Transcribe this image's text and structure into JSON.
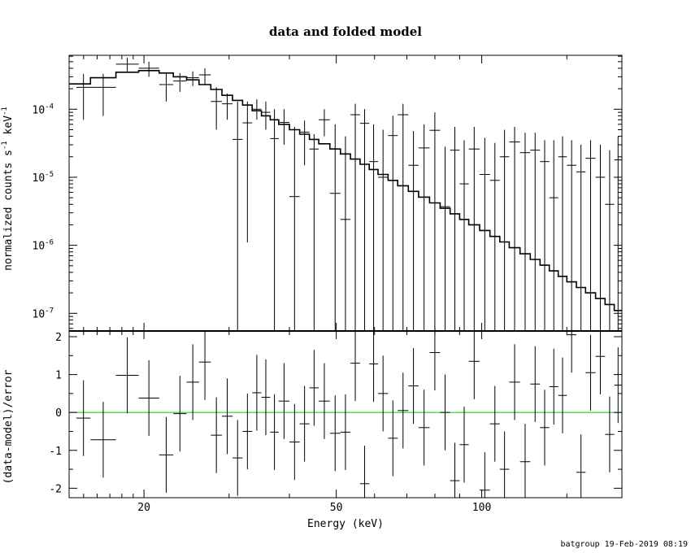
{
  "chart_data": {
    "type": "scatter",
    "title": "data and folded model",
    "footer": "batgroup 19-Feb-2019 08:19",
    "colors": {
      "axes": "#000000",
      "data": "#000000",
      "model": "#000000",
      "zero_line": "#00cc00",
      "background": "#ffffff"
    },
    "xlabel": "Energy (keV)",
    "x_scale": "log",
    "xlim": [
      14,
      195
    ],
    "x_ticks": [
      {
        "value": 20,
        "label": "20"
      },
      {
        "value": 50,
        "label": "50"
      },
      {
        "value": 100,
        "label": "100"
      }
    ],
    "panels": [
      {
        "id": "spectrum",
        "ylabel": "normalized counts s",
        "ylabel_units": "-1",
        "ylabel_tail": " keV",
        "ylabel_units2": "-1",
        "y_scale": "log",
        "ylim": [
          5.5e-08,
          0.00062
        ],
        "y_ticks": [
          {
            "value": 0.0001,
            "label": "10",
            "exp": "-4"
          },
          {
            "value": 1e-05,
            "label": "10",
            "exp": "-5"
          },
          {
            "value": 1e-06,
            "label": "10",
            "exp": "-6"
          },
          {
            "value": 1e-07,
            "label": "10",
            "exp": "-7"
          }
        ],
        "series": [
          {
            "kind": "data",
            "points": [
              [
                14.5,
                15.5,
                0.00021,
                7e-05,
                0.00033
              ],
              [
                15.5,
                17.5,
                0.00021,
                8e-05,
                0.00033
              ],
              [
                17.5,
                19.5,
                0.00046,
                0.00036,
                0.00057
              ],
              [
                19.5,
                21.5,
                0.0004,
                0.0003,
                0.0005
              ],
              [
                21.5,
                23.0,
                0.00023,
                0.00013,
                0.00034
              ],
              [
                23.0,
                24.5,
                0.00026,
                0.00018,
                0.00034
              ],
              [
                24.5,
                26.0,
                0.00029,
                0.00022,
                0.00036
              ],
              [
                26.0,
                27.5,
                0.00032,
                0.00023,
                0.0004
              ],
              [
                27.5,
                29.0,
                0.00013,
                5e-05,
                0.00021
              ],
              [
                29.0,
                30.5,
                0.00012,
                7e-05,
                0.00017
              ],
              [
                30.5,
                32.0,
                3.6e-05,
                5.5e-08,
                0.00013
              ],
              [
                32.0,
                33.5,
                6.3e-05,
                1.1e-06,
                0.00013
              ],
              [
                33.5,
                35.0,
                0.0001,
                7e-05,
                0.00014
              ],
              [
                35.0,
                36.5,
                9e-05,
                5e-05,
                0.00013
              ],
              [
                36.5,
                38.0,
                3.7e-05,
                5.5e-08,
                0.0001
              ],
              [
                38.0,
                40.0,
                6.4e-05,
                3e-05,
                0.0001
              ],
              [
                40.0,
                42.0,
                5.2e-06,
                5.5e-08,
                5.5e-05
              ],
              [
                42.0,
                44.0,
                4.6e-05,
                1.5e-05,
                6.8e-05
              ],
              [
                44.0,
                46.0,
                2.6e-05,
                5.5e-08,
                4.3e-05
              ],
              [
                46.0,
                48.5,
                7e-05,
                4e-05,
                0.0001
              ],
              [
                48.5,
                51.0,
                5.8e-06,
                5.5e-08,
                6e-05
              ],
              [
                51.0,
                53.5,
                2.4e-06,
                5.5e-08,
                4e-05
              ],
              [
                53.5,
                56.0,
                8.3e-05,
                5.5e-08,
                0.00012
              ],
              [
                56.0,
                58.5,
                6.2e-05,
                5.5e-08,
                0.0001
              ],
              [
                58.5,
                61.0,
                1.7e-05,
                5.5e-08,
                6e-05
              ],
              [
                61.0,
                64.0,
                1e-05,
                5.5e-08,
                5e-05
              ],
              [
                64.0,
                67.0,
                4.1e-05,
                5.5e-08,
                8e-05
              ],
              [
                67.0,
                70.5,
                8.3e-05,
                5.5e-08,
                0.00012
              ],
              [
                70.5,
                74.0,
                1.5e-05,
                5.5e-08,
                4.8e-05
              ],
              [
                74.0,
                78.0,
                2.7e-05,
                5.5e-08,
                6e-05
              ],
              [
                78.0,
                82.0,
                4.9e-05,
                5.5e-08,
                9e-05
              ],
              [
                82.0,
                86.0,
                3.7e-06,
                5.5e-08,
                2.8e-05
              ],
              [
                86.0,
                90.0,
                2.5e-05,
                5.5e-08,
                5.5e-05
              ],
              [
                90.0,
                94.0,
                8e-06,
                5.5e-08,
                3.5e-05
              ],
              [
                94.0,
                99.0,
                2.6e-05,
                5.5e-08,
                5.5e-05
              ],
              [
                99.0,
                104.0,
                1.1e-05,
                5.5e-08,
                3.8e-05
              ],
              [
                104.0,
                109.0,
                9e-06,
                5.5e-08,
                3.2e-05
              ],
              [
                109.0,
                114.0,
                2e-05,
                5.5e-08,
                5e-05
              ],
              [
                114.0,
                120.0,
                3.3e-05,
                5.5e-08,
                5.5e-05
              ],
              [
                120.0,
                126.0,
                2.3e-05,
                5.5e-08,
                4.5e-05
              ],
              [
                126.0,
                132.0,
                2.5e-05,
                5.5e-08,
                4.5e-05
              ],
              [
                132.0,
                138.0,
                1.7e-05,
                5.5e-08,
                3.5e-05
              ],
              [
                138.0,
                144.0,
                5e-06,
                5.5e-08,
                3.5e-05
              ],
              [
                144.0,
                150.0,
                2e-05,
                5.5e-08,
                4e-05
              ],
              [
                150.0,
                157.0,
                1.5e-05,
                5.5e-08,
                3.5e-05
              ],
              [
                157.0,
                164.0,
                1.2e-05,
                5.5e-08,
                3e-05
              ],
              [
                164.0,
                172.0,
                1.9e-05,
                5.5e-08,
                3.5e-05
              ],
              [
                172.0,
                180.0,
                1e-05,
                5.5e-08,
                3e-05
              ],
              [
                180.0,
                188.0,
                4e-06,
                5.5e-08,
                2.5e-05
              ],
              [
                188.0,
                195.0,
                1.8e-05,
                5.5e-08,
                4e-05
              ]
            ]
          },
          {
            "kind": "model",
            "steps": [
              [
                14.0,
                0.000235
              ],
              [
                15.5,
                0.00029
              ],
              [
                17.5,
                0.00035
              ],
              [
                19.5,
                0.00037
              ],
              [
                21.5,
                0.00034
              ],
              [
                23.0,
                0.0003
              ],
              [
                24.5,
                0.00027
              ],
              [
                26.0,
                0.00023
              ],
              [
                27.5,
                0.000195
              ],
              [
                29.0,
                0.00016
              ],
              [
                30.5,
                0.000135
              ],
              [
                32.0,
                0.000115
              ],
              [
                33.5,
                9.5e-05
              ],
              [
                35.0,
                8e-05
              ],
              [
                36.5,
                7e-05
              ],
              [
                38.0,
                6e-05
              ],
              [
                40.0,
                5e-05
              ],
              [
                42.0,
                4.3e-05
              ],
              [
                44.0,
                3.6e-05
              ],
              [
                46.0,
                3.1e-05
              ],
              [
                48.5,
                2.6e-05
              ],
              [
                51.0,
                2.2e-05
              ],
              [
                53.5,
                1.85e-05
              ],
              [
                56.0,
                1.55e-05
              ],
              [
                58.5,
                1.3e-05
              ],
              [
                61.0,
                1.1e-05
              ],
              [
                64.0,
                9e-06
              ],
              [
                67.0,
                7.5e-06
              ],
              [
                70.5,
                6.2e-06
              ],
              [
                74.0,
                5.1e-06
              ],
              [
                78.0,
                4.2e-06
              ],
              [
                82.0,
                3.5e-06
              ],
              [
                86.0,
                2.9e-06
              ],
              [
                90.0,
                2.4e-06
              ],
              [
                94.0,
                2e-06
              ],
              [
                99.0,
                1.65e-06
              ],
              [
                104.0,
                1.35e-06
              ],
              [
                109.0,
                1.12e-06
              ],
              [
                114.0,
                9.2e-07
              ],
              [
                120.0,
                7.5e-07
              ],
              [
                126.0,
                6.2e-07
              ],
              [
                132.0,
                5.1e-07
              ],
              [
                138.0,
                4.2e-07
              ],
              [
                144.0,
                3.5e-07
              ],
              [
                150.0,
                2.9e-07
              ],
              [
                157.0,
                2.4e-07
              ],
              [
                164.0,
                2e-07
              ],
              [
                172.0,
                1.65e-07
              ],
              [
                180.0,
                1.35e-07
              ],
              [
                188.0,
                1.1e-07
              ],
              [
                195.0,
                1.1e-07
              ]
            ]
          }
        ]
      },
      {
        "id": "residuals",
        "ylabel": "(data-model)/error",
        "y_scale": "linear",
        "ylim": [
          -2.25,
          2.15
        ],
        "zero_line": 0,
        "y_ticks": [
          {
            "value": 2,
            "label": "2"
          },
          {
            "value": 1,
            "label": "1"
          },
          {
            "value": 0,
            "label": "0"
          },
          {
            "value": -1,
            "label": "-1"
          },
          {
            "value": -2,
            "label": "-2"
          }
        ],
        "series": [
          {
            "kind": "residuals",
            "points": [
              [
                14.5,
                15.5,
                -0.15
              ],
              [
                15.5,
                17.5,
                -0.72
              ],
              [
                17.5,
                19.5,
                0.98
              ],
              [
                19.5,
                21.5,
                0.38
              ],
              [
                21.5,
                23.0,
                -1.12
              ],
              [
                23.0,
                24.5,
                -0.03
              ],
              [
                24.5,
                26.0,
                0.8
              ],
              [
                26.0,
                27.5,
                1.33
              ],
              [
                27.5,
                29.0,
                -0.6
              ],
              [
                29.0,
                30.5,
                -0.1
              ],
              [
                30.5,
                32.0,
                -1.2
              ],
              [
                32.0,
                33.5,
                -0.5
              ],
              [
                33.5,
                35.0,
                0.52
              ],
              [
                35.0,
                36.5,
                0.4
              ],
              [
                36.5,
                38.0,
                -0.52
              ],
              [
                38.0,
                40.0,
                0.3
              ],
              [
                40.0,
                42.0,
                -0.78
              ],
              [
                42.0,
                44.0,
                -0.3
              ],
              [
                44.0,
                46.0,
                0.65
              ],
              [
                46.0,
                48.5,
                0.3
              ],
              [
                48.5,
                51.0,
                -0.55
              ],
              [
                51.0,
                53.5,
                -0.52
              ],
              [
                53.5,
                56.0,
                1.3
              ],
              [
                56.0,
                58.5,
                -1.88
              ],
              [
                58.5,
                61.0,
                1.28
              ],
              [
                61.0,
                64.0,
                0.5
              ],
              [
                64.0,
                67.0,
                -0.68
              ],
              [
                67.0,
                70.5,
                0.05
              ],
              [
                70.5,
                74.0,
                0.7
              ],
              [
                74.0,
                78.0,
                -0.4
              ],
              [
                78.0,
                82.0,
                1.58
              ],
              [
                82.0,
                86.0,
                0.0
              ],
              [
                86.0,
                90.0,
                -1.8
              ],
              [
                90.0,
                94.0,
                -0.85
              ],
              [
                94.0,
                99.0,
                1.35
              ],
              [
                99.0,
                104.0,
                -2.05
              ],
              [
                104.0,
                109.0,
                -0.3
              ],
              [
                109.0,
                114.0,
                -1.5
              ],
              [
                114.0,
                120.0,
                0.8
              ],
              [
                120.0,
                126.0,
                -1.3
              ],
              [
                126.0,
                132.0,
                0.75
              ],
              [
                132.0,
                138.0,
                -0.4
              ],
              [
                138.0,
                144.0,
                0.68
              ],
              [
                144.0,
                150.0,
                0.45
              ],
              [
                150.0,
                157.0,
                2.05
              ],
              [
                157.0,
                164.0,
                -1.58
              ],
              [
                164.0,
                172.0,
                1.05
              ],
              [
                172.0,
                180.0,
                1.48
              ],
              [
                180.0,
                188.0,
                -0.58
              ],
              [
                188.0,
                195.0,
                0.72
              ]
            ]
          }
        ]
      }
    ]
  }
}
